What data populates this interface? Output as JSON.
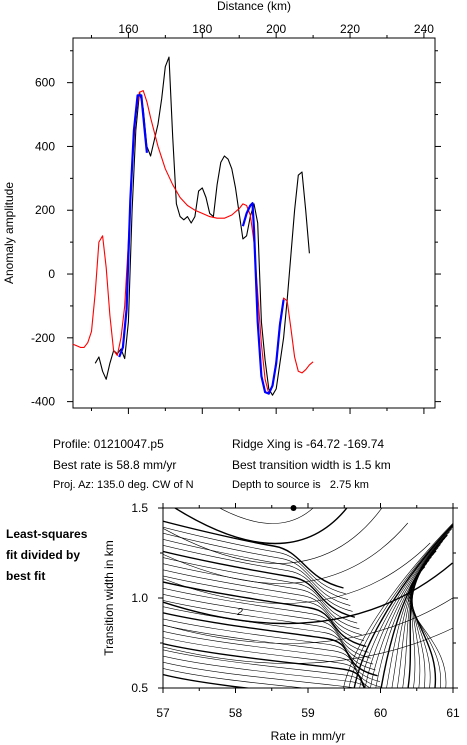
{
  "chart_data": [
    {
      "type": "line",
      "xlabel": "Distance (km)",
      "ylabel": "Anomaly amplitude",
      "xlim": [
        145,
        243
      ],
      "ylim": [
        -420,
        740
      ],
      "xticks": [
        160,
        180,
        200,
        220,
        240
      ],
      "yticks": [
        -400,
        -200,
        0,
        200,
        400,
        600
      ],
      "xaxis_position": "top",
      "grid": false,
      "series": [
        {
          "color": "#000000",
          "points": [
            [
              151,
              -280
            ],
            [
              152,
              -260
            ],
            [
              153,
              -305
            ],
            [
              154,
              -330
            ],
            [
              155,
              -280
            ],
            [
              156,
              -240
            ],
            [
              157,
              -250
            ],
            [
              158,
              -235
            ],
            [
              159,
              -265
            ],
            [
              160,
              -150
            ],
            [
              161,
              200
            ],
            [
              162,
              450
            ],
            [
              163,
              570
            ],
            [
              164,
              520
            ],
            [
              165,
              400
            ],
            [
              166,
              370
            ],
            [
              167,
              420
            ],
            [
              168,
              470
            ],
            [
              169,
              550
            ],
            [
              170,
              650
            ],
            [
              171,
              680
            ],
            [
              172,
              430
            ],
            [
              173,
              220
            ],
            [
              174,
              180
            ],
            [
              175,
              170
            ],
            [
              176,
              180
            ],
            [
              177,
              160
            ],
            [
              178,
              180
            ],
            [
              179,
              260
            ],
            [
              180,
              270
            ],
            [
              181,
              240
            ],
            [
              182,
              190
            ],
            [
              183,
              180
            ],
            [
              184,
              280
            ],
            [
              185,
              350
            ],
            [
              186,
              370
            ],
            [
              187,
              360
            ],
            [
              188,
              330
            ],
            [
              189,
              270
            ],
            [
              190,
              190
            ],
            [
              191,
              110
            ],
            [
              192,
              120
            ],
            [
              193,
              180
            ],
            [
              194,
              220
            ],
            [
              195,
              160
            ],
            [
              196,
              -150
            ],
            [
              197,
              -270
            ],
            [
              198,
              -360
            ],
            [
              199,
              -380
            ],
            [
              200,
              -360
            ],
            [
              201,
              -280
            ],
            [
              202,
              -200
            ],
            [
              203,
              -80
            ],
            [
              204,
              60
            ],
            [
              205,
              200
            ],
            [
              206,
              310
            ],
            [
              207,
              320
            ],
            [
              208,
              200
            ],
            [
              209,
              65
            ]
          ]
        },
        {
          "color": "#ff0000",
          "points": [
            [
              145,
              -220
            ],
            [
              146,
              -225
            ],
            [
              147,
              -230
            ],
            [
              148,
              -230
            ],
            [
              149,
              -215
            ],
            [
              150,
              -180
            ],
            [
              151,
              -60
            ],
            [
              152,
              100
            ],
            [
              153,
              120
            ],
            [
              154,
              20
            ],
            [
              155,
              -130
            ],
            [
              156,
              -240
            ],
            [
              157,
              -255
            ],
            [
              158,
              -200
            ],
            [
              159,
              -100
            ],
            [
              160,
              100
            ],
            [
              161,
              330
            ],
            [
              162,
              500
            ],
            [
              163,
              570
            ],
            [
              164,
              575
            ],
            [
              165,
              540
            ],
            [
              166,
              490
            ],
            [
              167,
              445
            ],
            [
              168,
              400
            ],
            [
              170,
              330
            ],
            [
              172,
              280
            ],
            [
              174,
              240
            ],
            [
              176,
              215
            ],
            [
              178,
              200
            ],
            [
              180,
              190
            ],
            [
              182,
              180
            ],
            [
              184,
              175
            ],
            [
              186,
              175
            ],
            [
              188,
              185
            ],
            [
              190,
              205
            ],
            [
              191,
              220
            ],
            [
              192,
              215
            ],
            [
              193,
              185
            ],
            [
              194,
              100
            ],
            [
              195,
              -60
            ],
            [
              196,
              -220
            ],
            [
              197,
              -330
            ],
            [
              198,
              -375
            ],
            [
              199,
              -350
            ],
            [
              200,
              -270
            ],
            [
              201,
              -150
            ],
            [
              202,
              -75
            ],
            [
              203,
              -85
            ],
            [
              204,
              -170
            ],
            [
              205,
              -260
            ],
            [
              206,
              -305
            ],
            [
              207,
              -310
            ],
            [
              208,
              -300
            ],
            [
              209,
              -285
            ],
            [
              210,
              -275
            ]
          ]
        },
        {
          "color": "#0000ff",
          "points": [
            [
              157.5,
              -260
            ],
            [
              158.5,
              -230
            ],
            [
              159.5,
              -110
            ],
            [
              160.5,
              230
            ],
            [
              161.5,
              450
            ],
            [
              162.5,
              560
            ],
            [
              163.5,
              560
            ],
            [
              164.5,
              440
            ],
            [
              165,
              380
            ]
          ]
        },
        {
          "color": "#0000ff",
          "points": [
            [
              191,
              150
            ],
            [
              192,
              190
            ],
            [
              193,
              215
            ],
            [
              193.6,
              222
            ],
            [
              194,
              140
            ],
            [
              195,
              -150
            ],
            [
              196,
              -320
            ],
            [
              197,
              -370
            ],
            [
              198,
              -375
            ],
            [
              199,
              -350
            ],
            [
              200,
              -280
            ],
            [
              201,
              -160
            ],
            [
              202,
              -80
            ]
          ]
        }
      ]
    },
    {
      "type": "contour",
      "xlabel": "Rate in mm/yr",
      "ylabel": "Transition width in km",
      "xlim": [
        57,
        61
      ],
      "ylim": [
        0.5,
        1.5
      ],
      "xticks": [
        "57",
        "58",
        "59",
        "60",
        "61"
      ],
      "yticks": [
        "0.5",
        "1.0",
        "1.5"
      ],
      "contour_label": "2",
      "best_fit_point": [
        58.8,
        1.5
      ]
    }
  ],
  "info": {
    "profile": "Profile: 01210047.p5",
    "best_rate": "Best rate is 58.8 mm/yr",
    "proj_az": "Proj. Az: 135.0 deg. CW of N",
    "ridge_xing": "Ridge Xing is -64.72 -169.74",
    "best_transition": "Best transition width is 1.5 km",
    "depth": "Depth to source is   2.75 km"
  },
  "side_note": {
    "line1": "Least-squares",
    "line2": "fit divided by",
    "line3": "best fit"
  }
}
